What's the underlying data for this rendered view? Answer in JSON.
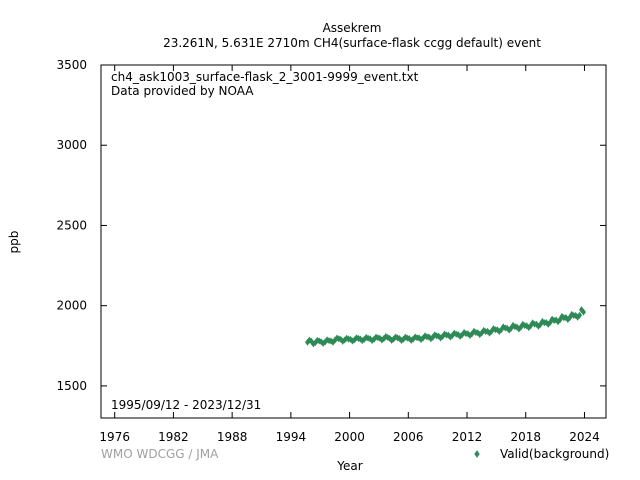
{
  "chart_data": {
    "type": "scatter",
    "title_line1": "Assekrem",
    "title_line2": "23.261N, 5.631E 2710m    CH4(surface-flask ccgg default) event",
    "annotation_file": "ch4_ask1003_surface-flask_2_3001-9999_event.txt",
    "annotation_provider": "Data provided by NOAA",
    "annotation_period": "1995/09/12 - 2023/12/31",
    "credit": "WMO WDCGG / JMA",
    "xlabel": "Year",
    "ylabel": "ppb",
    "xlim": [
      1974.6,
      2026.2
    ],
    "ylim": [
      1300,
      3500
    ],
    "x_ticks": [
      1976,
      1982,
      1988,
      1994,
      2000,
      2006,
      2012,
      2018,
      2024
    ],
    "y_ticks": [
      1500,
      2000,
      2500,
      3000,
      3500
    ],
    "grid": false,
    "legend_position": "bottom-right",
    "series": [
      {
        "name": "Valid(background)",
        "color": "#2e8b57",
        "marker": "diamond",
        "points": [
          [
            1995.7,
            1772
          ],
          [
            1995.9,
            1785
          ],
          [
            1996.1,
            1778
          ],
          [
            1996.3,
            1762
          ],
          [
            1996.5,
            1770
          ],
          [
            1996.7,
            1784
          ],
          [
            1996.9,
            1780
          ],
          [
            1997.1,
            1775
          ],
          [
            1997.3,
            1765
          ],
          [
            1997.5,
            1774
          ],
          [
            1997.7,
            1787
          ],
          [
            1997.9,
            1782
          ],
          [
            1998.1,
            1780
          ],
          [
            1998.3,
            1772
          ],
          [
            1998.5,
            1785
          ],
          [
            1998.7,
            1798
          ],
          [
            1998.9,
            1794
          ],
          [
            1999.1,
            1790
          ],
          [
            1999.3,
            1778
          ],
          [
            1999.5,
            1786
          ],
          [
            1999.7,
            1797
          ],
          [
            1999.9,
            1792
          ],
          [
            2000.1,
            1790
          ],
          [
            2000.3,
            1780
          ],
          [
            2000.5,
            1787
          ],
          [
            2000.7,
            1800
          ],
          [
            2000.9,
            1796
          ],
          [
            2001.1,
            1792
          ],
          [
            2001.3,
            1782
          ],
          [
            2001.5,
            1790
          ],
          [
            2001.7,
            1802
          ],
          [
            2001.9,
            1797
          ],
          [
            2002.1,
            1794
          ],
          [
            2002.3,
            1783
          ],
          [
            2002.5,
            1791
          ],
          [
            2002.7,
            1804
          ],
          [
            2002.9,
            1800
          ],
          [
            2003.1,
            1797
          ],
          [
            2003.3,
            1786
          ],
          [
            2003.5,
            1795
          ],
          [
            2003.7,
            1808
          ],
          [
            2003.9,
            1802
          ],
          [
            2004.1,
            1796
          ],
          [
            2004.3,
            1784
          ],
          [
            2004.5,
            1792
          ],
          [
            2004.7,
            1805
          ],
          [
            2004.9,
            1799
          ],
          [
            2005.1,
            1795
          ],
          [
            2005.3,
            1783
          ],
          [
            2005.5,
            1791
          ],
          [
            2005.7,
            1804
          ],
          [
            2005.9,
            1798
          ],
          [
            2006.1,
            1795
          ],
          [
            2006.3,
            1784
          ],
          [
            2006.5,
            1792
          ],
          [
            2006.7,
            1805
          ],
          [
            2006.9,
            1800
          ],
          [
            2007.1,
            1799
          ],
          [
            2007.3,
            1789
          ],
          [
            2007.5,
            1798
          ],
          [
            2007.7,
            1812
          ],
          [
            2007.9,
            1806
          ],
          [
            2008.1,
            1805
          ],
          [
            2008.3,
            1794
          ],
          [
            2008.5,
            1803
          ],
          [
            2008.7,
            1818
          ],
          [
            2008.9,
            1812
          ],
          [
            2009.1,
            1810
          ],
          [
            2009.3,
            1799
          ],
          [
            2009.5,
            1808
          ],
          [
            2009.7,
            1823
          ],
          [
            2009.9,
            1817
          ],
          [
            2010.1,
            1816
          ],
          [
            2010.3,
            1805
          ],
          [
            2010.5,
            1814
          ],
          [
            2010.7,
            1829
          ],
          [
            2010.9,
            1822
          ],
          [
            2011.1,
            1820
          ],
          [
            2011.3,
            1809
          ],
          [
            2011.5,
            1818
          ],
          [
            2011.7,
            1833
          ],
          [
            2011.9,
            1826
          ],
          [
            2012.1,
            1825
          ],
          [
            2012.3,
            1814
          ],
          [
            2012.5,
            1824
          ],
          [
            2012.7,
            1840
          ],
          [
            2012.9,
            1833
          ],
          [
            2013.1,
            1831
          ],
          [
            2013.3,
            1820
          ],
          [
            2013.5,
            1830
          ],
          [
            2013.7,
            1846
          ],
          [
            2013.9,
            1839
          ],
          [
            2014.1,
            1840
          ],
          [
            2014.3,
            1829
          ],
          [
            2014.5,
            1840
          ],
          [
            2014.7,
            1857
          ],
          [
            2014.9,
            1850
          ],
          [
            2015.1,
            1850
          ],
          [
            2015.3,
            1839
          ],
          [
            2015.5,
            1850
          ],
          [
            2015.7,
            1868
          ],
          [
            2015.9,
            1861
          ],
          [
            2016.1,
            1860
          ],
          [
            2016.3,
            1848
          ],
          [
            2016.5,
            1859
          ],
          [
            2016.7,
            1877
          ],
          [
            2016.9,
            1869
          ],
          [
            2017.1,
            1867
          ],
          [
            2017.3,
            1855
          ],
          [
            2017.5,
            1866
          ],
          [
            2017.7,
            1884
          ],
          [
            2017.9,
            1876
          ],
          [
            2018.1,
            1875
          ],
          [
            2018.3,
            1863
          ],
          [
            2018.5,
            1874
          ],
          [
            2018.7,
            1893
          ],
          [
            2018.9,
            1885
          ],
          [
            2019.1,
            1884
          ],
          [
            2019.3,
            1872
          ],
          [
            2019.5,
            1883
          ],
          [
            2019.7,
            1902
          ],
          [
            2019.9,
            1894
          ],
          [
            2020.1,
            1895
          ],
          [
            2020.3,
            1884
          ],
          [
            2020.5,
            1896
          ],
          [
            2020.7,
            1916
          ],
          [
            2020.9,
            1908
          ],
          [
            2021.1,
            1911
          ],
          [
            2021.3,
            1900
          ],
          [
            2021.5,
            1912
          ],
          [
            2021.7,
            1933
          ],
          [
            2021.9,
            1925
          ],
          [
            2022.1,
            1926
          ],
          [
            2022.3,
            1914
          ],
          [
            2022.5,
            1926
          ],
          [
            2022.7,
            1946
          ],
          [
            2022.9,
            1939
          ],
          [
            2023.1,
            1939
          ],
          [
            2023.3,
            1928
          ],
          [
            2023.5,
            1940
          ],
          [
            2023.7,
            1975
          ],
          [
            2023.9,
            1960
          ]
        ]
      }
    ]
  }
}
